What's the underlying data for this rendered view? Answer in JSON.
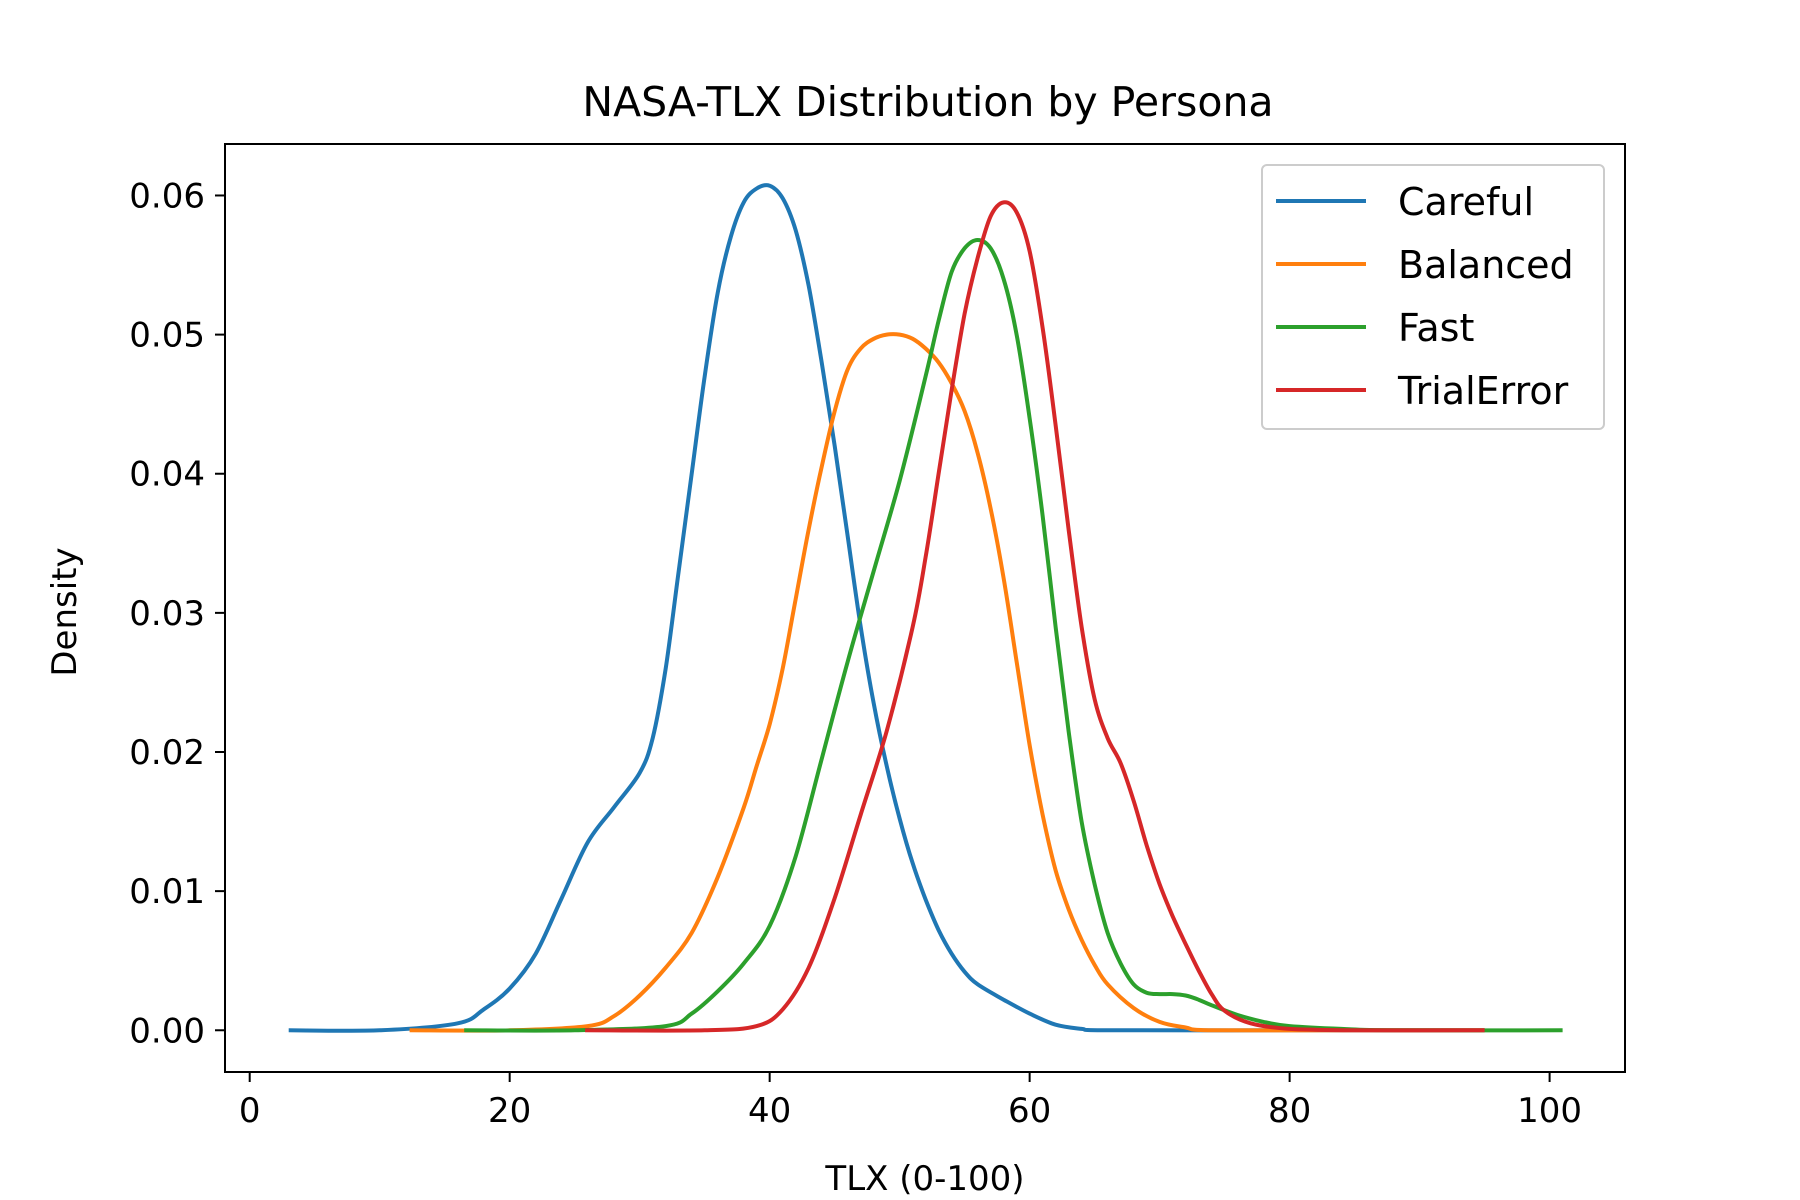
{
  "chart_data": {
    "type": "line",
    "title": "NASA-TLX Distribution by Persona",
    "xlabel": "TLX (0-100)",
    "ylabel": "Density",
    "xlim": [
      -1.9,
      105.8
    ],
    "ylim": [
      -0.003,
      0.0637
    ],
    "xticks": [
      "0",
      "20",
      "40",
      "60",
      "80",
      "100"
    ],
    "xtick_values": [
      0,
      20,
      40,
      60,
      80,
      100
    ],
    "yticks": [
      "0.00",
      "0.01",
      "0.02",
      "0.03",
      "0.04",
      "0.05",
      "0.06"
    ],
    "ytick_values": [
      0,
      0.01,
      0.02,
      0.03,
      0.04,
      0.05,
      0.06
    ],
    "grid": false,
    "legend_position": "top-right",
    "series": [
      {
        "name": "Careful",
        "color": "#1f77b4",
        "points": [
          [
            3,
            0
          ],
          [
            10,
            0
          ],
          [
            16,
            0.0005
          ],
          [
            18,
            0.0015
          ],
          [
            20,
            0.003
          ],
          [
            22,
            0.0055
          ],
          [
            24,
            0.0095
          ],
          [
            26,
            0.0135
          ],
          [
            28,
            0.016
          ],
          [
            30,
            0.0185
          ],
          [
            31,
            0.021
          ],
          [
            32,
            0.026
          ],
          [
            33,
            0.033
          ],
          [
            34,
            0.04
          ],
          [
            35,
            0.047
          ],
          [
            36,
            0.053
          ],
          [
            37,
            0.057
          ],
          [
            38,
            0.0595
          ],
          [
            39,
            0.0605
          ],
          [
            40,
            0.0607
          ],
          [
            41,
            0.0598
          ],
          [
            42,
            0.0575
          ],
          [
            43,
            0.0535
          ],
          [
            44,
            0.048
          ],
          [
            45,
            0.042
          ],
          [
            46,
            0.0355
          ],
          [
            47,
            0.029
          ],
          [
            48,
            0.0235
          ],
          [
            49,
            0.019
          ],
          [
            50,
            0.0152
          ],
          [
            51,
            0.012
          ],
          [
            52,
            0.0094
          ],
          [
            53,
            0.0072
          ],
          [
            54,
            0.0055
          ],
          [
            55,
            0.0042
          ],
          [
            56,
            0.0033
          ],
          [
            58,
            0.0022
          ],
          [
            60,
            0.0012
          ],
          [
            62,
            0.0004
          ],
          [
            64,
            0.0001
          ],
          [
            66,
            0
          ],
          [
            80,
            0
          ],
          [
            95,
            0
          ]
        ]
      },
      {
        "name": "Balanced",
        "color": "#ff7f0e",
        "points": [
          [
            12.3,
            0
          ],
          [
            20,
            0
          ],
          [
            26,
            0.0003
          ],
          [
            28,
            0.001
          ],
          [
            30,
            0.0025
          ],
          [
            32,
            0.0045
          ],
          [
            34,
            0.007
          ],
          [
            36,
            0.011
          ],
          [
            38,
            0.016
          ],
          [
            39,
            0.019
          ],
          [
            40,
            0.022
          ],
          [
            41,
            0.026
          ],
          [
            42,
            0.031
          ],
          [
            43,
            0.036
          ],
          [
            44,
            0.0405
          ],
          [
            45,
            0.0445
          ],
          [
            46,
            0.0475
          ],
          [
            47,
            0.049
          ],
          [
            48,
            0.0497
          ],
          [
            49,
            0.05
          ],
          [
            50,
            0.05
          ],
          [
            51,
            0.0497
          ],
          [
            52,
            0.049
          ],
          [
            53,
            0.048
          ],
          [
            54,
            0.0465
          ],
          [
            55,
            0.0445
          ],
          [
            56,
            0.0415
          ],
          [
            57,
            0.0375
          ],
          [
            58,
            0.0325
          ],
          [
            59,
            0.0265
          ],
          [
            60,
            0.0205
          ],
          [
            61,
            0.0155
          ],
          [
            62,
            0.0115
          ],
          [
            63,
            0.0087
          ],
          [
            64,
            0.0065
          ],
          [
            65,
            0.0047
          ],
          [
            66,
            0.0033
          ],
          [
            68,
            0.0016
          ],
          [
            70,
            0.0006
          ],
          [
            72,
            0.0002
          ],
          [
            74,
            0
          ],
          [
            85,
            0
          ],
          [
            95,
            0
          ]
        ]
      },
      {
        "name": "Fast",
        "color": "#2ca02c",
        "points": [
          [
            16.5,
            0
          ],
          [
            25,
            0
          ],
          [
            32,
            0.0003
          ],
          [
            34,
            0.0012
          ],
          [
            36,
            0.0028
          ],
          [
            38,
            0.0048
          ],
          [
            40,
            0.0075
          ],
          [
            42,
            0.0125
          ],
          [
            44,
            0.0195
          ],
          [
            46,
            0.0265
          ],
          [
            48,
            0.033
          ],
          [
            50,
            0.0395
          ],
          [
            52,
            0.047
          ],
          [
            53,
            0.051
          ],
          [
            54,
            0.0545
          ],
          [
            55,
            0.0562
          ],
          [
            56,
            0.0568
          ],
          [
            57,
            0.0562
          ],
          [
            58,
            0.054
          ],
          [
            59,
            0.05
          ],
          [
            60,
            0.044
          ],
          [
            61,
            0.037
          ],
          [
            62,
            0.029
          ],
          [
            63,
            0.0215
          ],
          [
            64,
            0.015
          ],
          [
            65,
            0.0105
          ],
          [
            66,
            0.007
          ],
          [
            67,
            0.0048
          ],
          [
            68,
            0.0033
          ],
          [
            69,
            0.0027
          ],
          [
            70,
            0.0026
          ],
          [
            71,
            0.0026
          ],
          [
            72,
            0.0025
          ],
          [
            73,
            0.0022
          ],
          [
            74,
            0.0018
          ],
          [
            76,
            0.0011
          ],
          [
            78,
            0.0006
          ],
          [
            80,
            0.0003
          ],
          [
            84,
            0.0001
          ],
          [
            88,
            0
          ],
          [
            101,
            0
          ]
        ]
      },
      {
        "name": "TrialError",
        "color": "#d62728",
        "points": [
          [
            25.8,
            0
          ],
          [
            35,
            0
          ],
          [
            39,
            0.0003
          ],
          [
            41,
            0.0015
          ],
          [
            43,
            0.0045
          ],
          [
            45,
            0.0095
          ],
          [
            47,
            0.0155
          ],
          [
            49,
            0.0215
          ],
          [
            51,
            0.029
          ],
          [
            52,
            0.034
          ],
          [
            53,
            0.04
          ],
          [
            54,
            0.046
          ],
          [
            55,
            0.0515
          ],
          [
            56,
            0.0555
          ],
          [
            57,
            0.0585
          ],
          [
            58,
            0.0595
          ],
          [
            59,
            0.0588
          ],
          [
            60,
            0.056
          ],
          [
            61,
            0.0505
          ],
          [
            62,
            0.0435
          ],
          [
            63,
            0.036
          ],
          [
            64,
            0.029
          ],
          [
            65,
            0.0238
          ],
          [
            66,
            0.021
          ],
          [
            67,
            0.0192
          ],
          [
            68,
            0.0165
          ],
          [
            69,
            0.0133
          ],
          [
            70,
            0.0105
          ],
          [
            71,
            0.0082
          ],
          [
            72,
            0.0062
          ],
          [
            73,
            0.0043
          ],
          [
            74,
            0.0026
          ],
          [
            75,
            0.0014
          ],
          [
            77,
            0.0005
          ],
          [
            80,
            0.0001
          ],
          [
            85,
            0
          ],
          [
            95,
            0
          ]
        ]
      }
    ]
  }
}
